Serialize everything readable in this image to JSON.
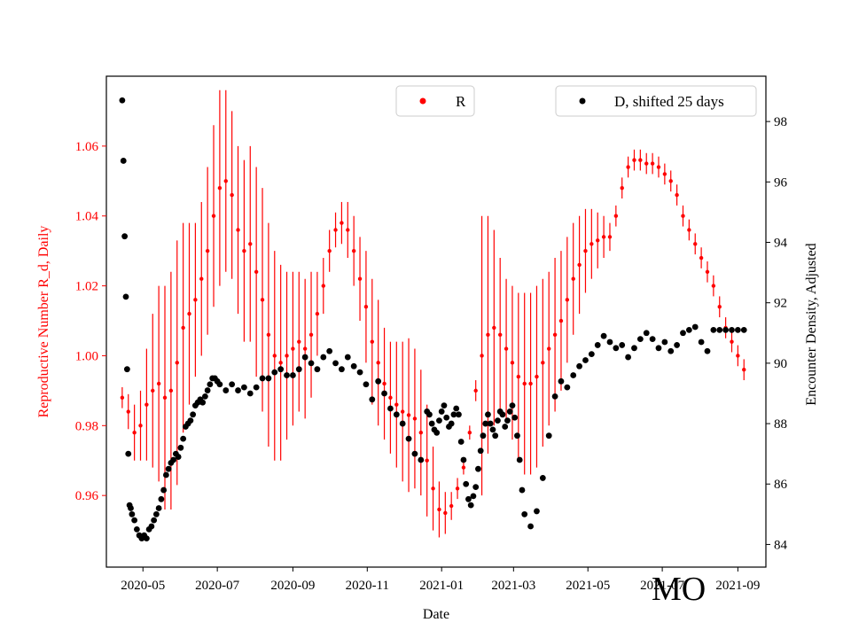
{
  "chart_data": {
    "type": "line",
    "title": "",
    "corner_label": "MO",
    "xlabel": "Date",
    "ylabel_left": "Reproductive Number R_d, Daily",
    "ylabel_right": "Encounter Density, Adjusted",
    "x_ticks": [
      "2020-05",
      "2020-07",
      "2020-09",
      "2020-11",
      "2021-01",
      "2021-03",
      "2021-05",
      "2021-07",
      "2021-09"
    ],
    "x_tick_days": [
      17,
      78,
      140,
      201,
      262,
      321,
      382,
      443,
      505
    ],
    "x_range_days": [
      -13,
      528
    ],
    "left_axis": {
      "ylim": [
        0.9395,
        1.08
      ],
      "ticks": [
        0.96,
        0.98,
        1.0,
        1.02,
        1.04,
        1.06
      ],
      "tick_labels": [
        "0.96",
        "0.98",
        "1.00",
        "1.02",
        "1.04",
        "1.06"
      ],
      "color": "#ff0000"
    },
    "right_axis": {
      "ylim": [
        83.25,
        99.5
      ],
      "ticks": [
        84,
        86,
        88,
        90,
        92,
        94,
        96,
        98
      ],
      "tick_labels": [
        "84",
        "86",
        "88",
        "90",
        "92",
        "94",
        "96",
        "98"
      ],
      "color": "#000000"
    },
    "legend_r": {
      "label": "R",
      "color": "#ff0000",
      "position": "top-center"
    },
    "legend_d": {
      "label": "D, shifted 25 days",
      "color": "#000000",
      "position": "top-right"
    },
    "series_r": {
      "name": "R",
      "axis": "left",
      "color": "#ff0000",
      "x_days": [
        0,
        5,
        10,
        15,
        20,
        25,
        30,
        35,
        40,
        45,
        50,
        55,
        60,
        65,
        70,
        75,
        80,
        85,
        90,
        95,
        100,
        105,
        110,
        115,
        120,
        125,
        130,
        135,
        140,
        145,
        150,
        155,
        160,
        165,
        170,
        175,
        180,
        185,
        190,
        195,
        200,
        205,
        210,
        215,
        220,
        225,
        230,
        235,
        240,
        245,
        250,
        255,
        260,
        265,
        270,
        275,
        280,
        285,
        290,
        295,
        300,
        305,
        310,
        315,
        320,
        325,
        330,
        335,
        340,
        345,
        350,
        355,
        360,
        365,
        370,
        375,
        380,
        385,
        390,
        395,
        400,
        405,
        410,
        415,
        420,
        425,
        430,
        435,
        440,
        445,
        450,
        455,
        460,
        465,
        470,
        475,
        480,
        485,
        490,
        495,
        500,
        505,
        510
      ],
      "values": [
        0.988,
        0.984,
        0.978,
        0.98,
        0.986,
        0.99,
        0.992,
        0.988,
        0.99,
        0.998,
        1.008,
        1.012,
        1.016,
        1.022,
        1.03,
        1.04,
        1.048,
        1.05,
        1.046,
        1.036,
        1.03,
        1.032,
        1.024,
        1.016,
        1.006,
        1.0,
        0.998,
        1.0,
        1.002,
        1.004,
        1.002,
        1.006,
        1.012,
        1.02,
        1.03,
        1.036,
        1.038,
        1.036,
        1.03,
        1.022,
        1.014,
        1.004,
        0.998,
        0.992,
        0.988,
        0.986,
        0.984,
        0.983,
        0.982,
        0.978,
        0.97,
        0.962,
        0.956,
        0.955,
        0.957,
        0.962,
        0.968,
        0.978,
        0.99,
        1.0,
        1.006,
        1.008,
        1.006,
        1.002,
        0.998,
        0.994,
        0.992,
        0.992,
        0.994,
        0.998,
        1.002,
        1.006,
        1.01,
        1.016,
        1.022,
        1.026,
        1.03,
        1.032,
        1.033,
        1.034,
        1.034,
        1.04,
        1.048,
        1.054,
        1.056,
        1.056,
        1.055,
        1.055,
        1.054,
        1.052,
        1.05,
        1.046,
        1.04,
        1.036,
        1.032,
        1.028,
        1.024,
        1.02,
        1.014,
        1.008,
        1.004,
        1.0,
        0.996
      ],
      "err": [
        0.003,
        0.005,
        0.008,
        0.01,
        0.016,
        0.022,
        0.028,
        0.032,
        0.034,
        0.035,
        0.03,
        0.026,
        0.022,
        0.022,
        0.024,
        0.026,
        0.028,
        0.026,
        0.024,
        0.024,
        0.026,
        0.028,
        0.03,
        0.032,
        0.032,
        0.03,
        0.028,
        0.024,
        0.022,
        0.02,
        0.02,
        0.018,
        0.012,
        0.008,
        0.006,
        0.005,
        0.006,
        0.008,
        0.01,
        0.012,
        0.016,
        0.018,
        0.018,
        0.016,
        0.016,
        0.018,
        0.02,
        0.022,
        0.02,
        0.018,
        0.016,
        0.012,
        0.008,
        0.006,
        0.004,
        0.003,
        0.002,
        0.002,
        0.003,
        0.04,
        0.034,
        0.028,
        0.022,
        0.02,
        0.022,
        0.024,
        0.026,
        0.026,
        0.026,
        0.024,
        0.022,
        0.022,
        0.02,
        0.018,
        0.016,
        0.014,
        0.012,
        0.01,
        0.008,
        0.006,
        0.004,
        0.003,
        0.003,
        0.003,
        0.003,
        0.003,
        0.003,
        0.003,
        0.003,
        0.003,
        0.003,
        0.003,
        0.003,
        0.003,
        0.003,
        0.003,
        0.003,
        0.003,
        0.003,
        0.003,
        0.003,
        0.003,
        0.003
      ]
    },
    "series_d": {
      "name": "D, shifted 25 days",
      "axis": "right",
      "color": "#000000",
      "x_days": [
        0,
        1,
        2,
        3,
        4,
        5,
        6,
        7,
        8,
        10,
        12,
        14,
        16,
        18,
        20,
        22,
        24,
        26,
        28,
        30,
        32,
        34,
        36,
        38,
        40,
        42,
        44,
        46,
        48,
        50,
        52,
        54,
        56,
        58,
        60,
        62,
        64,
        66,
        68,
        70,
        72,
        74,
        76,
        78,
        80,
        85,
        90,
        95,
        100,
        105,
        110,
        115,
        120,
        125,
        130,
        135,
        140,
        145,
        150,
        155,
        160,
        165,
        170,
        175,
        180,
        185,
        190,
        195,
        200,
        205,
        210,
        215,
        220,
        225,
        230,
        235,
        240,
        245,
        250,
        252,
        254,
        256,
        258,
        260,
        262,
        264,
        266,
        268,
        270,
        272,
        274,
        276,
        278,
        280,
        282,
        284,
        286,
        288,
        290,
        292,
        294,
        296,
        298,
        300,
        302,
        304,
        306,
        308,
        310,
        312,
        314,
        316,
        318,
        320,
        322,
        324,
        326,
        328,
        330,
        335,
        340,
        345,
        350,
        355,
        360,
        365,
        370,
        375,
        380,
        385,
        390,
        395,
        400,
        405,
        410,
        415,
        420,
        425,
        430,
        435,
        440,
        445,
        450,
        455,
        460,
        465,
        470,
        475,
        480,
        485,
        490,
        495,
        500,
        505,
        510
      ],
      "values": [
        98.7,
        96.7,
        94.2,
        92.2,
        89.8,
        87.0,
        85.3,
        85.2,
        85.0,
        84.8,
        84.5,
        84.3,
        84.2,
        84.3,
        84.2,
        84.5,
        84.6,
        84.8,
        85.0,
        85.2,
        85.5,
        85.8,
        86.3,
        86.5,
        86.7,
        86.8,
        87.0,
        86.9,
        87.2,
        87.5,
        87.9,
        88.0,
        88.1,
        88.3,
        88.6,
        88.7,
        88.8,
        88.7,
        88.9,
        89.1,
        89.3,
        89.5,
        89.5,
        89.4,
        89.3,
        89.1,
        89.3,
        89.1,
        89.2,
        89.0,
        89.2,
        89.5,
        89.5,
        89.7,
        89.8,
        89.6,
        89.6,
        89.8,
        90.2,
        90.0,
        89.8,
        90.2,
        90.4,
        90.0,
        89.8,
        90.2,
        89.9,
        89.7,
        89.3,
        88.8,
        89.4,
        89.0,
        88.5,
        88.3,
        88.0,
        87.5,
        87.0,
        86.8,
        88.4,
        88.3,
        88.0,
        87.8,
        87.7,
        88.1,
        88.4,
        88.6,
        88.2,
        87.9,
        88.0,
        88.3,
        88.5,
        88.3,
        87.4,
        86.8,
        86.0,
        85.5,
        85.3,
        85.6,
        85.9,
        86.5,
        87.1,
        87.6,
        88.0,
        88.3,
        88.0,
        87.8,
        87.6,
        88.1,
        88.4,
        88.3,
        87.9,
        88.1,
        88.4,
        88.6,
        88.2,
        87.6,
        86.8,
        85.8,
        85.0,
        84.6,
        85.1,
        86.2,
        87.6,
        88.9,
        89.4,
        89.2,
        89.6,
        89.9,
        90.1,
        90.3,
        90.6,
        90.9,
        90.7,
        90.5,
        90.6,
        90.2,
        90.5,
        90.8,
        91.0,
        90.8,
        90.5,
        90.7,
        90.4,
        90.6,
        91.0,
        91.1,
        91.2,
        90.7,
        90.4,
        91.1,
        91.1,
        91.1,
        91.1,
        91.1,
        91.1
      ]
    }
  }
}
